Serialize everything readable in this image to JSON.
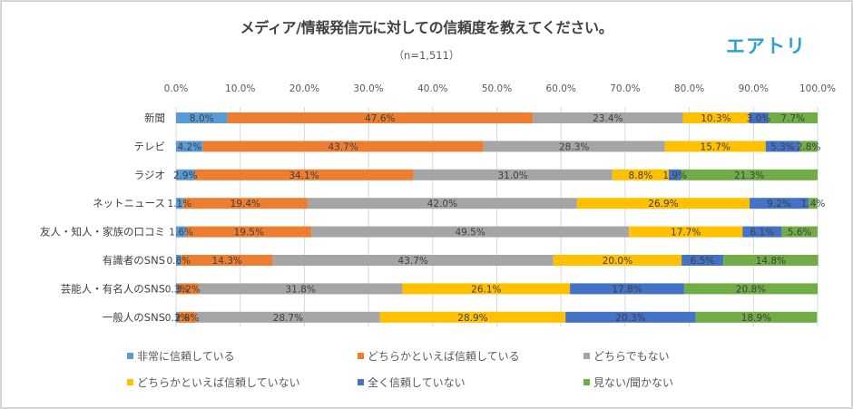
{
  "header": {
    "title": "メディア/情報発信元に対しての信頼度を教えてください。",
    "subtitle": "（n=1,511）",
    "logo_text": "エアトリ"
  },
  "chart_data": {
    "type": "bar",
    "orientation": "horizontal",
    "stacked": "percent",
    "title": "メディア/情報発信元に対しての信頼度を教えてください。",
    "subtitle": "（n=1,511）",
    "xlabel": "",
    "ylabel": "",
    "xlim": [
      0,
      100
    ],
    "x_ticks": [
      "0.0%",
      "10.0%",
      "20.0%",
      "30.0%",
      "40.0%",
      "50.0%",
      "60.0%",
      "70.0%",
      "80.0%",
      "90.0%",
      "100.0%"
    ],
    "x_axis_position": "top",
    "grid": true,
    "legend_position": "bottom",
    "categories": [
      "新聞",
      "テレビ",
      "ラジオ",
      "ネットニュース",
      "友人・知人・家族の口コミ",
      "有識者のSNS",
      "芸能人・有名人のSNS",
      "一般人のSNS"
    ],
    "series": [
      {
        "name": "非常に信頼している",
        "color": "#5b9bd5",
        "values": [
          8.0,
          4.2,
          2.9,
          1.1,
          1.6,
          0.8,
          0.3,
          0.3
        ]
      },
      {
        "name": "どちらかといえば信頼している",
        "color": "#ed7d31",
        "values": [
          47.6,
          43.7,
          34.1,
          19.4,
          19.5,
          14.3,
          3.2,
          2.8
        ]
      },
      {
        "name": "どちらでもない",
        "color": "#a5a5a5",
        "values": [
          23.4,
          28.3,
          31.0,
          42.0,
          49.5,
          43.7,
          31.8,
          28.7
        ]
      },
      {
        "name": "どちらかといえば信頼していない",
        "color": "#ffc000",
        "values": [
          10.3,
          15.7,
          8.8,
          26.9,
          17.7,
          20.0,
          26.1,
          28.9
        ]
      },
      {
        "name": "全く信頼していない",
        "color": "#4472c4",
        "values": [
          3.0,
          5.3,
          1.9,
          9.2,
          6.1,
          6.5,
          17.8,
          20.3
        ]
      },
      {
        "name": "見ない/聞かない",
        "color": "#70ad47",
        "values": [
          7.7,
          2.8,
          21.3,
          1.4,
          5.6,
          14.8,
          20.8,
          18.9
        ]
      }
    ],
    "data_label_format": "{v}%"
  },
  "legend": {
    "items": [
      {
        "label": "非常に信頼している",
        "color": "#5b9bd5"
      },
      {
        "label": "どちらかといえば信頼している",
        "color": "#ed7d31"
      },
      {
        "label": "どちらでもない",
        "color": "#a5a5a5"
      },
      {
        "label": "どちらかといえば信頼していない",
        "color": "#ffc000"
      },
      {
        "label": "全く信頼していない",
        "color": "#4472c4"
      },
      {
        "label": "見ない/聞かない",
        "color": "#70ad47"
      }
    ]
  }
}
